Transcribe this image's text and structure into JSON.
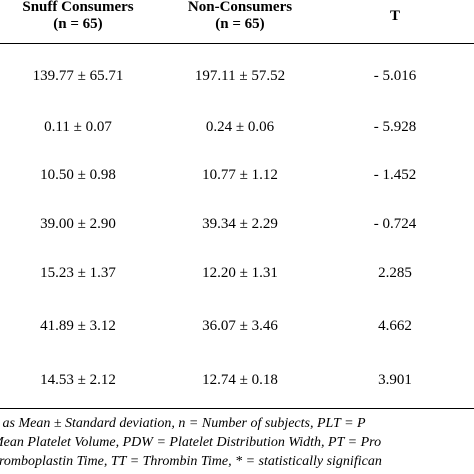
{
  "table": {
    "headers": {
      "snuff": {
        "line1": "Snuff Consumers",
        "line2": "(n = 65)"
      },
      "non": {
        "line1": "Non-Consumers",
        "line2": "(n = 65)"
      },
      "t": "T"
    },
    "rows": [
      {
        "snuff": "139.77 ± 65.71",
        "non": "197.11 ± 57.52",
        "t": "- 5.016"
      },
      {
        "snuff": "0.11 ± 0.07",
        "non": "0.24 ± 0.06",
        "t": "- 5.928"
      },
      {
        "snuff": "10.50 ± 0.98",
        "non": "10.77 ± 1.12",
        "t": "- 1.452"
      },
      {
        "snuff": "39.00 ± 2.90",
        "non": "39.34 ± 2.29",
        "t": "- 0.724"
      },
      {
        "snuff": "15.23 ± 1.37",
        "non": "12.20 ± 1.31",
        "t": "2.285"
      },
      {
        "snuff": "41.89 ± 3.12",
        "non": "36.07 ± 3.46",
        "t": "4.662"
      },
      {
        "snuff": "14.53 ± 2.12",
        "non": "12.74 ± 0.18",
        "t": "3.901"
      }
    ]
  },
  "footnote": {
    "line1": "d as Mean ± Standard deviation, n = Number of subjects, PLT = P",
    "line2": "Mean Platelet Volume, PDW = Platelet Distribution Width, PT = Pro",
    "line3": "hromboplastin Time, TT = Thrombin Time, * = statistically significan"
  }
}
